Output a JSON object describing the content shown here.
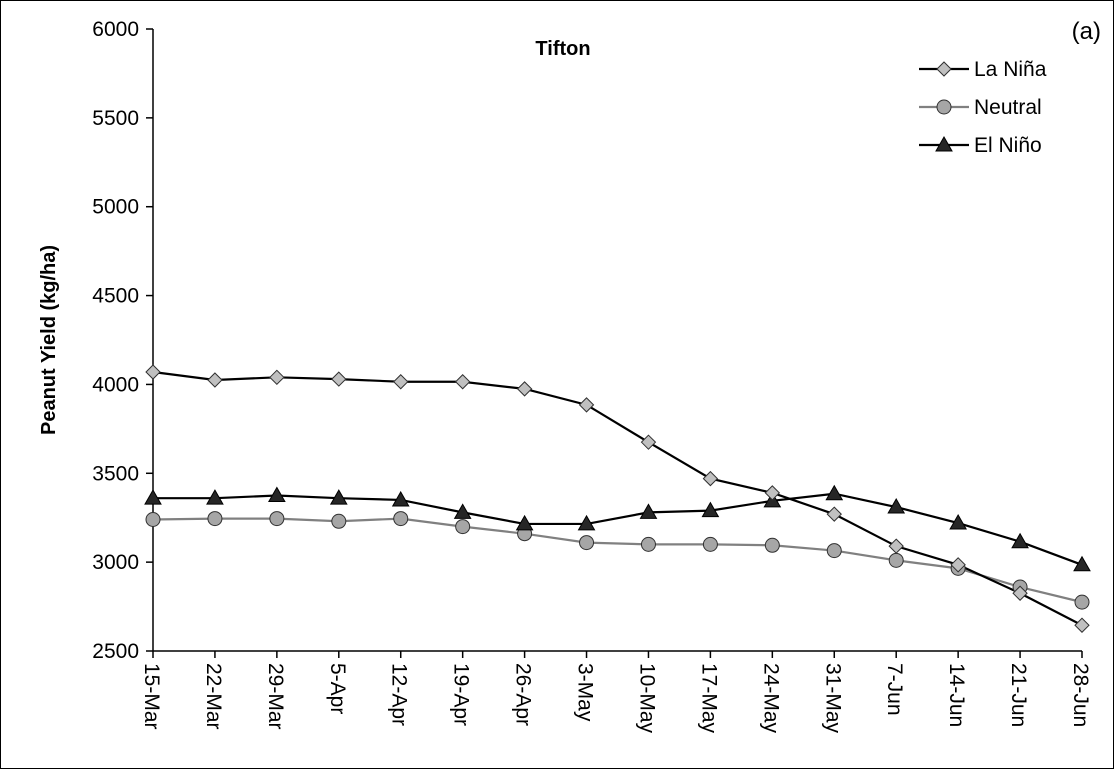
{
  "chart_data": {
    "type": "line",
    "title": "Tifton",
    "panel_label": "(a)",
    "xlabel": "",
    "ylabel": "Peanut Yield (kg/ha)",
    "ylim": [
      2500,
      6000
    ],
    "yticks": [
      2500,
      3000,
      3500,
      4000,
      4500,
      5000,
      5500,
      6000
    ],
    "categories": [
      "15-Mar",
      "22-Mar",
      "29-Mar",
      "5-Apr",
      "12-Apr",
      "19-Apr",
      "26-Apr",
      "3-May",
      "10-May",
      "17-May",
      "24-May",
      "31-May",
      "7-Jun",
      "14-Jun",
      "21-Jun",
      "28-Jun"
    ],
    "grid": false,
    "legend_position": "top-right",
    "series": [
      {
        "name": "La Niña",
        "marker": "diamond",
        "line_color": "#000000",
        "marker_fill": "#c0c0c0",
        "values": [
          4070,
          4025,
          4040,
          4030,
          4015,
          4015,
          3975,
          3885,
          3675,
          3470,
          3390,
          3270,
          3090,
          2985,
          2825,
          2645
        ]
      },
      {
        "name": "Neutral",
        "marker": "circle",
        "line_color": "#808080",
        "marker_fill": "#a6a6a6",
        "values": [
          3240,
          3245,
          3245,
          3230,
          3245,
          3200,
          3160,
          3110,
          3100,
          3100,
          3095,
          3065,
          3010,
          2965,
          2860,
          2775
        ]
      },
      {
        "name": "El Niño",
        "marker": "triangle",
        "line_color": "#000000",
        "marker_fill": "#262626",
        "values": [
          3360,
          3360,
          3375,
          3360,
          3350,
          3280,
          3215,
          3215,
          3280,
          3290,
          3345,
          3385,
          3310,
          3220,
          3115,
          2985
        ]
      }
    ]
  }
}
